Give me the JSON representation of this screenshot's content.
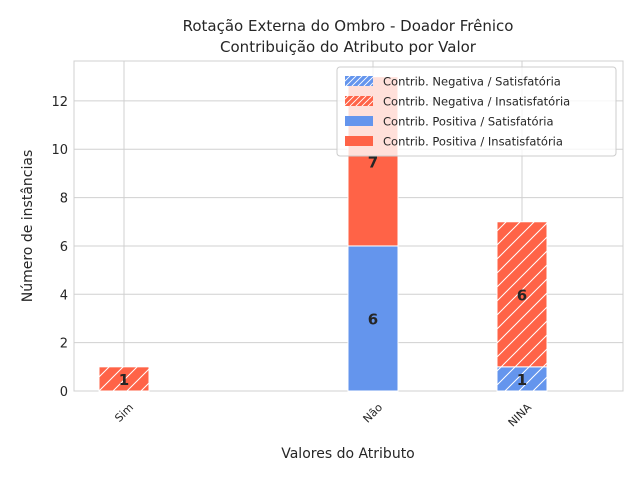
{
  "chart_data": {
    "type": "bar",
    "stacked": true,
    "title_lines": [
      "Rotação Externa do Ombro - Doador Frênico",
      "Contribuição do Atributo por Valor"
    ],
    "xlabel": "Valores do Atributo",
    "ylabel": "Número de instâncias",
    "ylim": [
      0,
      13.65
    ],
    "yticks": [
      0,
      2,
      4,
      6,
      8,
      10,
      12
    ],
    "grid": true,
    "legend_position": "top-right",
    "categories": [
      "Sim",
      "Não",
      "NINA"
    ],
    "series": [
      {
        "name": "Contrib. Negativa / Satisfatória",
        "group": "negativa",
        "color": "#6495ED",
        "hatch": true,
        "values": [
          0,
          0,
          1
        ]
      },
      {
        "name": "Contrib. Negativa / Insatisfatória",
        "group": "negativa",
        "color": "#FF6347",
        "hatch": true,
        "values": [
          1,
          0,
          6
        ]
      },
      {
        "name": "Contrib. Positiva / Satisfatória",
        "group": "positiva",
        "color": "#6495ED",
        "hatch": false,
        "values": [
          0,
          6,
          0
        ]
      },
      {
        "name": "Contrib. Positiva / Insatisfatória",
        "group": "positiva",
        "color": "#FF6347",
        "hatch": false,
        "values": [
          0,
          7,
          0
        ]
      }
    ]
  }
}
